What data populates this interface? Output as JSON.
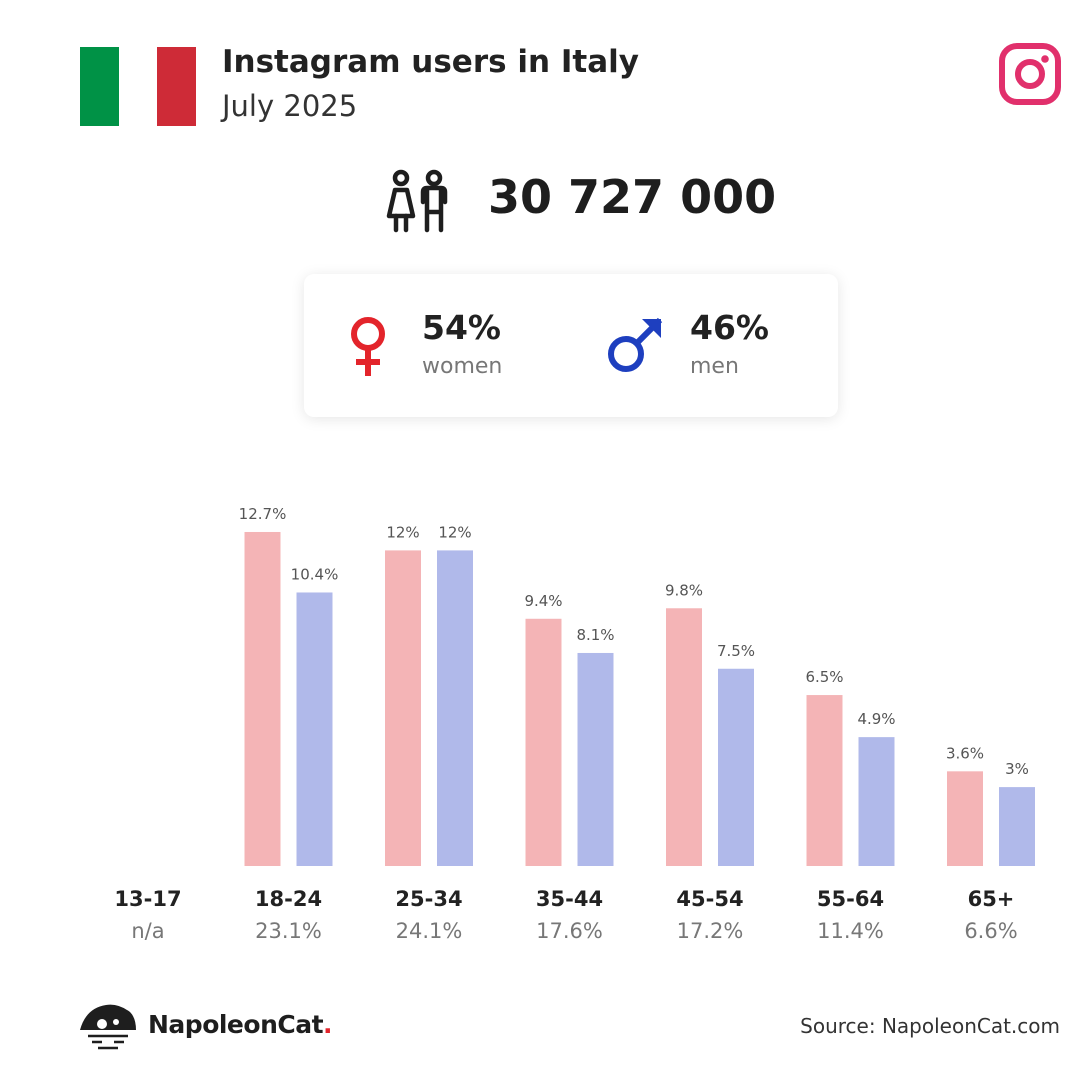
{
  "header": {
    "title": "Instagram users in Italy",
    "subtitle": "July 2025",
    "flag_colors": [
      "#009246",
      "#ffffff",
      "#ce2b37"
    ],
    "brand_icon": "instagram-icon",
    "brand_color": "#e1306c"
  },
  "users": {
    "icon": "users-icon",
    "total": "30 727 000"
  },
  "gender": {
    "women": {
      "pct": "54%",
      "label": "women",
      "icon": "female-icon",
      "color": "#e3242b"
    },
    "men": {
      "pct": "46%",
      "label": "men",
      "icon": "male-icon",
      "color": "#1e3fbf"
    }
  },
  "chart_data": {
    "type": "bar",
    "categories": [
      "13-17",
      "18-24",
      "25-34",
      "35-44",
      "45-54",
      "55-64",
      "65+"
    ],
    "category_totals": [
      "n/a",
      "23.1%",
      "24.1%",
      "17.6%",
      "17.2%",
      "11.4%",
      "6.6%"
    ],
    "series": [
      {
        "values": [
          null,
          12.7,
          12,
          9.4,
          9.8,
          6.5,
          3.6
        ],
        "labels": [
          "",
          "12.7%",
          "12%",
          "9.4%",
          "9.8%",
          "6.5%",
          "3.6%"
        ],
        "color": "#f4b4b6"
      },
      {
        "values": [
          null,
          10.4,
          12,
          8.1,
          7.5,
          4.9,
          3
        ],
        "labels": [
          "",
          "10.4%",
          "12%",
          "8.1%",
          "7.5%",
          "4.9%",
          "3%"
        ],
        "color": "#b0b9ea"
      }
    ],
    "ylim": [
      0,
      13.5
    ],
    "grid": false,
    "legend": "none"
  },
  "footer": {
    "brand_name": "NapoleonCat",
    "brand_dot": ".",
    "logo_icon": "napoleoncat-logo-icon",
    "source": "Source: NapoleonCat.com"
  }
}
